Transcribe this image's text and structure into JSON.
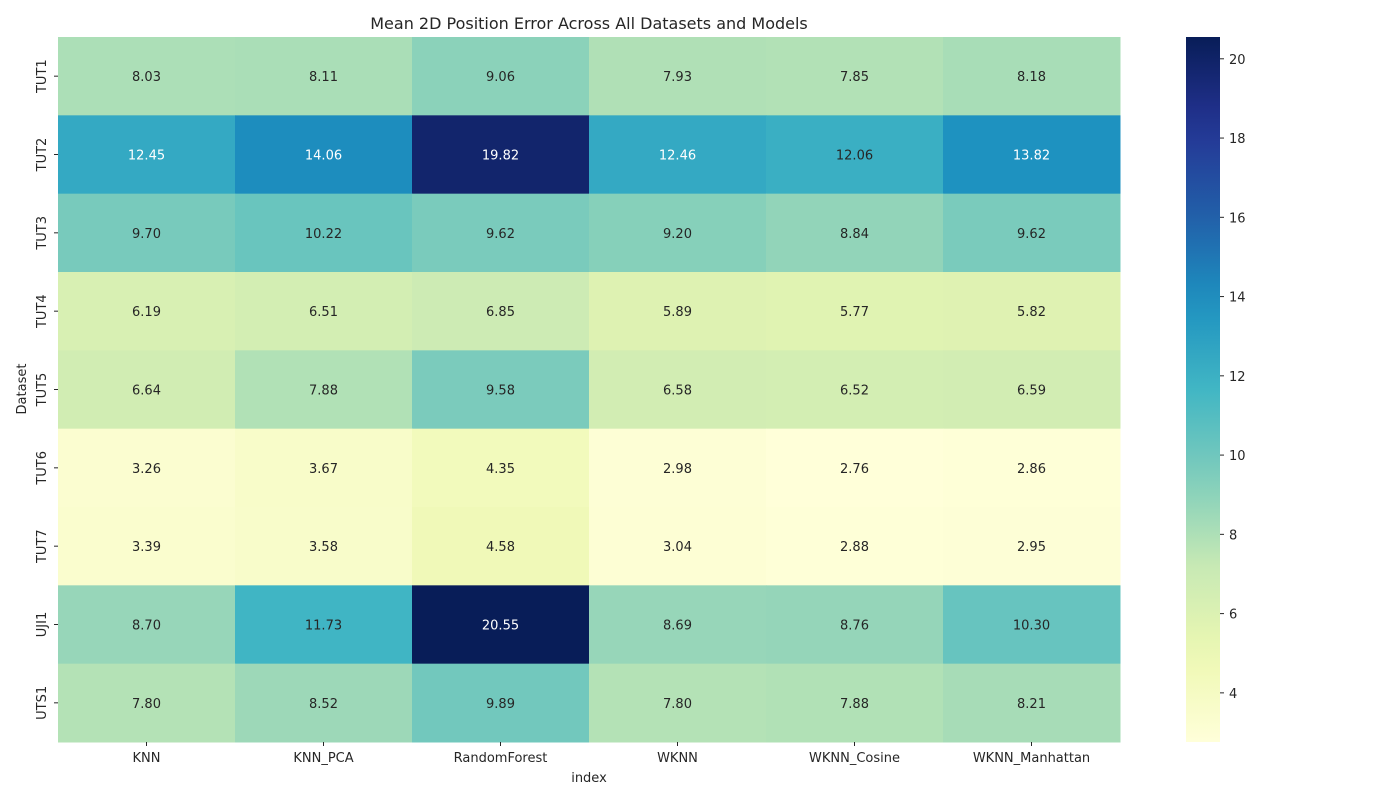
{
  "chart_data": {
    "type": "heatmap",
    "title": "Mean 2D Position Error Across All Datasets and Models",
    "xlabel": "index",
    "ylabel": "Dataset",
    "columns": [
      "KNN",
      "KNN_PCA",
      "RandomForest",
      "WKNN",
      "WKNN_Cosine",
      "WKNN_Manhattan"
    ],
    "rows": [
      "TUT1",
      "TUT2",
      "TUT3",
      "TUT4",
      "TUT5",
      "TUT6",
      "TUT7",
      "UJI1",
      "UTS1"
    ],
    "values": [
      [
        8.03,
        8.11,
        9.06,
        7.93,
        7.85,
        8.18
      ],
      [
        12.45,
        14.06,
        19.82,
        12.46,
        12.06,
        13.82
      ],
      [
        9.7,
        10.22,
        9.62,
        9.2,
        8.84,
        9.62
      ],
      [
        6.19,
        6.51,
        6.85,
        5.89,
        5.77,
        5.82
      ],
      [
        6.64,
        7.88,
        9.58,
        6.58,
        6.52,
        6.59
      ],
      [
        3.26,
        3.67,
        4.35,
        2.98,
        2.76,
        2.86
      ],
      [
        3.39,
        3.58,
        4.58,
        3.04,
        2.88,
        2.95
      ],
      [
        8.7,
        11.73,
        20.55,
        8.69,
        8.76,
        10.3
      ],
      [
        7.8,
        8.52,
        9.89,
        7.8,
        7.88,
        8.21
      ]
    ],
    "value_format": "2 decimals",
    "colormap": "YlGnBu",
    "colorbar": {
      "min": 2.76,
      "max": 20.55,
      "ticks": [
        4,
        6,
        8,
        10,
        12,
        14,
        16,
        18,
        20
      ]
    },
    "grid": false,
    "legend": "colorbar-right"
  }
}
